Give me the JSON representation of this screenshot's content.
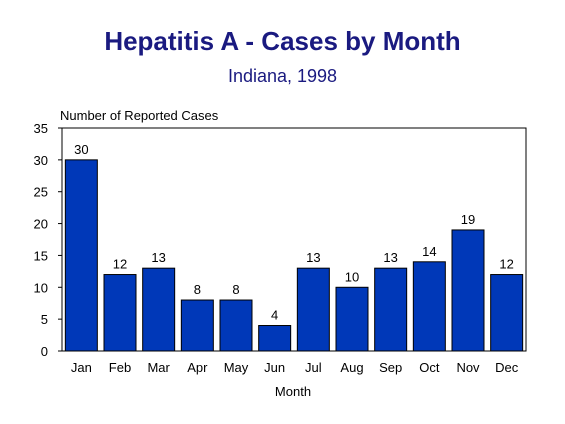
{
  "chart_data": {
    "type": "bar",
    "title": "Hepatitis A - Cases by Month",
    "subtitle": "Indiana, 1998",
    "xlabel": "Month",
    "ylabel": "Number of Reported Cases",
    "categories": [
      "Jan",
      "Feb",
      "Mar",
      "Apr",
      "May",
      "Jun",
      "Jul",
      "Aug",
      "Sep",
      "Oct",
      "Nov",
      "Dec"
    ],
    "values": [
      30,
      12,
      13,
      8,
      8,
      4,
      13,
      10,
      13,
      14,
      19,
      12
    ],
    "ylim": [
      0,
      35
    ],
    "yticks": [
      "0",
      "5",
      "10",
      "15",
      "20",
      "25",
      "30",
      "35"
    ],
    "grid": false,
    "bar_color": "#0038b8"
  }
}
